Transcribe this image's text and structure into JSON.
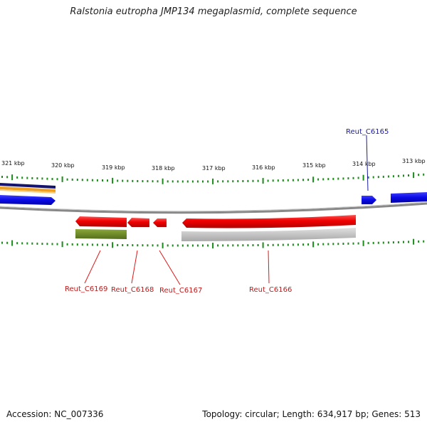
{
  "title": "Ralstonia eutropha JMP134 megaplasmid, complete sequence",
  "footer": {
    "accession": "Accession: NC_007336",
    "topology": "Topology: circular; Length: 634,917 bp; Genes: 513"
  },
  "scale_labels": [
    "321 kbp",
    "320 kbp",
    "319 kbp",
    "318 kbp",
    "317 kbp",
    "316 kbp",
    "315 kbp",
    "314 kbp",
    "313 kbp"
  ],
  "gene_labels": [
    {
      "text": "Reut_C6165",
      "color": "#1a1aa0"
    },
    {
      "text": "Reut_C6169",
      "color": "#c01818"
    },
    {
      "text": "Reut_C6168",
      "color": "#c01818"
    },
    {
      "text": "Reut_C6167",
      "color": "#c01818"
    },
    {
      "text": "Reut_C6166",
      "color": "#c01818"
    }
  ],
  "colors": {
    "forward_gene": "#1010e8",
    "reverse_gene": "#f00000",
    "backbone": "#888888",
    "tick": "#1a8c1a",
    "olive_feature": "#6f8f2a",
    "gray_feature": "#b8b8b8",
    "navy_track": "#141470",
    "orange_track": "#f0a020"
  }
}
